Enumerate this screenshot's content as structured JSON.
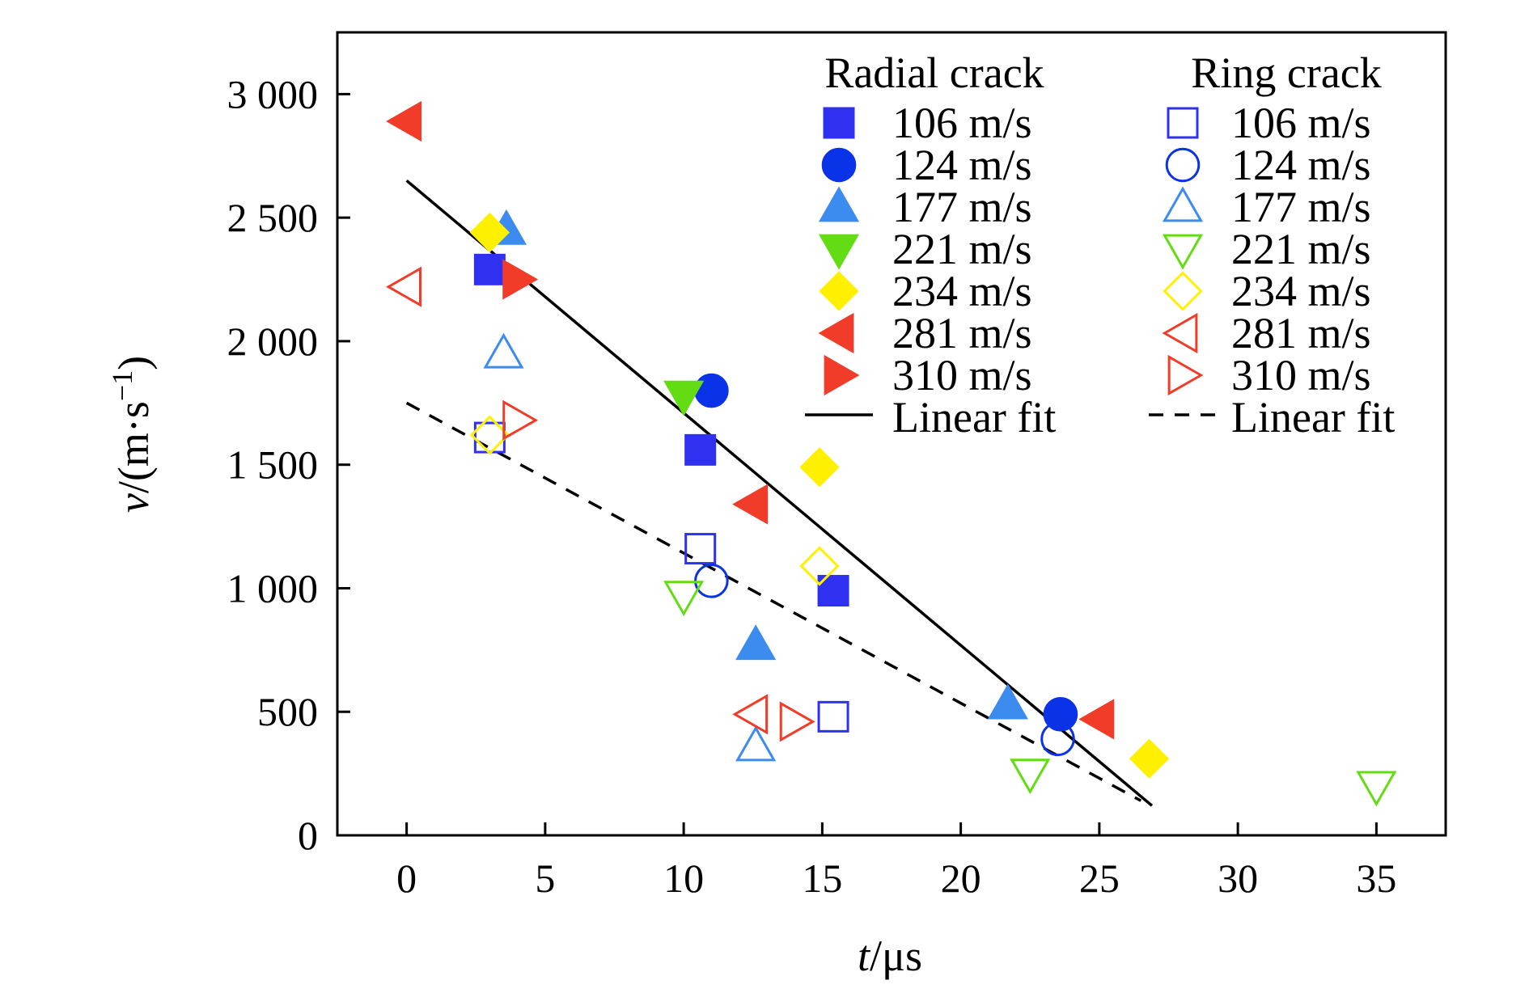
{
  "chart_data": {
    "type": "scatter",
    "xlabel": {
      "var": "t",
      "unit": "/μs"
    },
    "ylabel": {
      "var": "v",
      "unit_open": "/(m·s",
      "sup": "−1",
      "unit_close": ")"
    },
    "xlim": [
      -2.5,
      37.5
    ],
    "ylim": [
      0,
      3250
    ],
    "xticks": [
      0,
      5,
      10,
      15,
      20,
      25,
      30,
      35
    ],
    "xtick_labels": [
      "0",
      "5",
      "10",
      "15",
      "20",
      "25",
      "30",
      "35"
    ],
    "yticks": [
      0,
      500,
      1000,
      1500,
      2000,
      2500,
      3000
    ],
    "ytick_labels": [
      "0",
      "500",
      "1 000",
      "1 500",
      "2 000",
      "2 500",
      "3 000"
    ],
    "grid": false,
    "legend_position": "top-right",
    "groups": [
      {
        "title": "Radial crack",
        "filled": true,
        "series": [
          {
            "name": "106 m/s",
            "marker": "square",
            "color": "#3030f0",
            "points": [
              [
                3.0,
                2290
              ],
              [
                10.6,
                1560
              ],
              [
                15.4,
                990
              ]
            ]
          },
          {
            "name": "124 m/s",
            "marker": "circle",
            "color": "#0a32e6",
            "points": [
              [
                11.0,
                1800
              ],
              [
                23.6,
                490
              ]
            ]
          },
          {
            "name": "177 m/s",
            "marker": "triangle-up",
            "color": "#3c8cf0",
            "points": [
              [
                3.6,
                2450
              ],
              [
                12.6,
                770
              ],
              [
                21.7,
                530
              ]
            ]
          },
          {
            "name": "221 m/s",
            "marker": "triangle-down",
            "color": "#64dc14",
            "points": [
              [
                10.0,
                1780
              ]
            ]
          },
          {
            "name": "234 m/s",
            "marker": "diamond",
            "color": "#fff000",
            "points": [
              [
                3.0,
                2440
              ],
              [
                14.9,
                1490
              ],
              [
                26.8,
                310
              ]
            ]
          },
          {
            "name": "281 m/s",
            "marker": "triangle-left",
            "color": "#f03c28",
            "points": [
              [
                0.0,
                2890
              ],
              [
                12.5,
                1340
              ],
              [
                25.0,
                470
              ]
            ]
          },
          {
            "name": "310 m/s",
            "marker": "triangle-right",
            "color": "#f03c28",
            "points": [
              [
                4.0,
                2250
              ]
            ]
          }
        ],
        "fit": {
          "name": "Linear fit",
          "style": "solid",
          "x": [
            0.0,
            26.9
          ],
          "y": [
            2650,
            120
          ]
        }
      },
      {
        "title": "Ring crack",
        "filled": false,
        "series": [
          {
            "name": "106 m/s",
            "marker": "square",
            "color": "#3030f0",
            "points": [
              [
                3.0,
                1610
              ],
              [
                10.6,
                1160
              ],
              [
                15.4,
                480
              ]
            ]
          },
          {
            "name": "124 m/s",
            "marker": "circle",
            "color": "#0a32e6",
            "points": [
              [
                11.0,
                1030
              ],
              [
                23.5,
                390
              ]
            ]
          },
          {
            "name": "177 m/s",
            "marker": "triangle-up",
            "color": "#3c8cf0",
            "points": [
              [
                3.5,
                1950
              ],
              [
                12.6,
                360
              ]
            ]
          },
          {
            "name": "221 m/s",
            "marker": "triangle-down",
            "color": "#64dc14",
            "points": [
              [
                10.0,
                970
              ],
              [
                22.5,
                250
              ],
              [
                35.0,
                200
              ]
            ]
          },
          {
            "name": "234 m/s",
            "marker": "diamond",
            "color": "#fff000",
            "points": [
              [
                3.0,
                1620
              ],
              [
                14.9,
                1090
              ]
            ]
          },
          {
            "name": "281 m/s",
            "marker": "triangle-left",
            "color": "#f03c28",
            "points": [
              [
                0.0,
                2220
              ],
              [
                12.5,
                490
              ]
            ]
          },
          {
            "name": "310 m/s",
            "marker": "triangle-right",
            "color": "#f03c28",
            "points": [
              [
                4.0,
                1680
              ],
              [
                14.0,
                460
              ]
            ]
          }
        ],
        "fit": {
          "name": "Linear fit",
          "style": "dashed",
          "x": [
            0.0,
            26.5
          ],
          "y": [
            1750,
            140
          ]
        }
      }
    ]
  }
}
